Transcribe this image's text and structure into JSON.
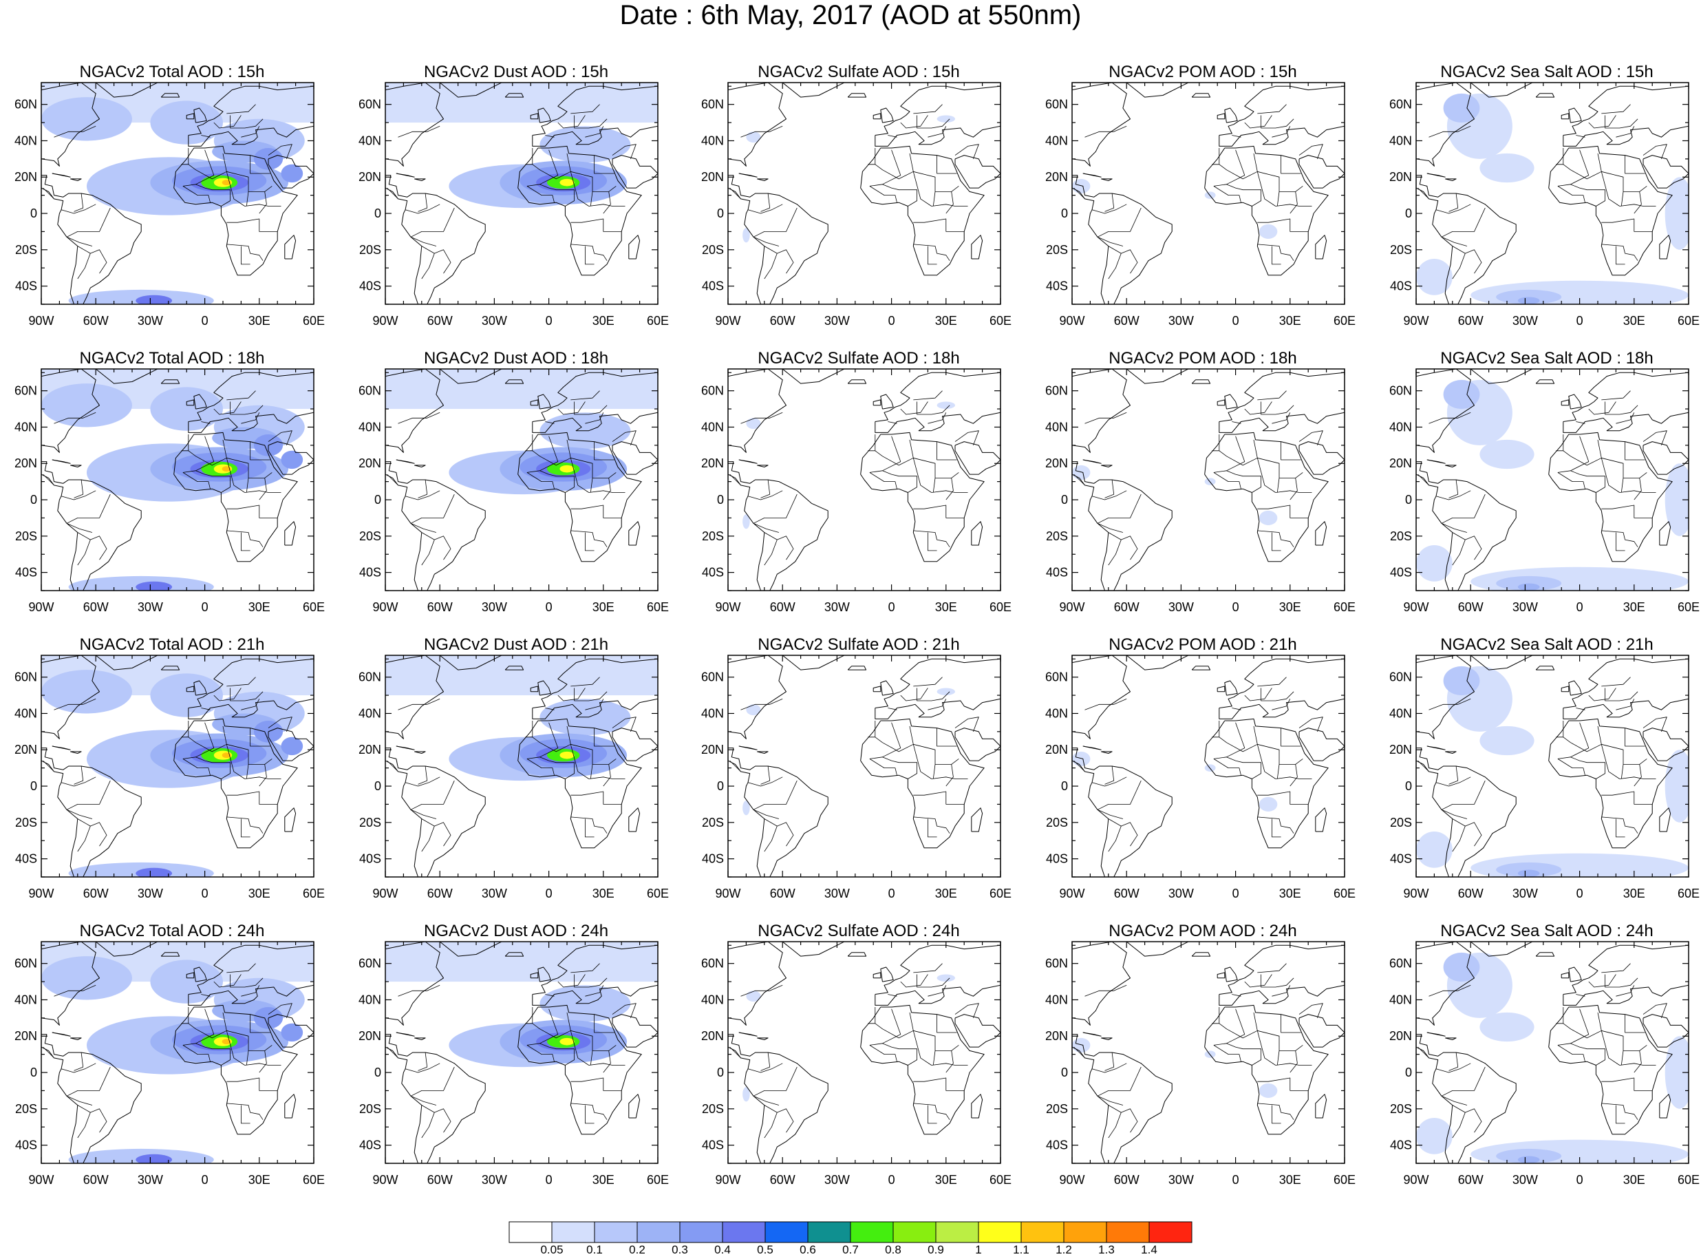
{
  "title": "Date : 6th May, 2017 (AOD at 550nm)",
  "map": {
    "lon_ticks": [
      "90W",
      "60W",
      "30W",
      "0",
      "30E",
      "60E"
    ],
    "lat_ticks": [
      "60N",
      "40N",
      "20N",
      "0",
      "20S",
      "40S"
    ]
  },
  "panels": [
    {
      "title": "NGACv2 Total AOD : 15h",
      "species": "total"
    },
    {
      "title": "NGACv2 Dust AOD : 15h",
      "species": "dust"
    },
    {
      "title": "NGACv2 Sulfate AOD : 15h",
      "species": "sulfate"
    },
    {
      "title": "NGACv2 POM AOD : 15h",
      "species": "pom"
    },
    {
      "title": "NGACv2 Sea Salt AOD : 15h",
      "species": "seasalt"
    },
    {
      "title": "NGACv2 Total AOD : 18h",
      "species": "total"
    },
    {
      "title": "NGACv2 Dust AOD : 18h",
      "species": "dust"
    },
    {
      "title": "NGACv2 Sulfate AOD : 18h",
      "species": "sulfate"
    },
    {
      "title": "NGACv2 POM AOD : 18h",
      "species": "pom"
    },
    {
      "title": "NGACv2 Sea Salt AOD : 18h",
      "species": "seasalt"
    },
    {
      "title": "NGACv2 Total AOD : 21h",
      "species": "total"
    },
    {
      "title": "NGACv2 Dust AOD : 21h",
      "species": "dust"
    },
    {
      "title": "NGACv2 Sulfate AOD : 21h",
      "species": "sulfate"
    },
    {
      "title": "NGACv2 POM AOD : 21h",
      "species": "pom"
    },
    {
      "title": "NGACv2 Sea Salt AOD : 21h",
      "species": "seasalt"
    },
    {
      "title": "NGACv2 Total AOD : 24h",
      "species": "total"
    },
    {
      "title": "NGACv2 Dust AOD : 24h",
      "species": "dust"
    },
    {
      "title": "NGACv2 Sulfate AOD : 24h",
      "species": "sulfate"
    },
    {
      "title": "NGACv2 POM AOD : 24h",
      "species": "pom"
    },
    {
      "title": "NGACv2 Sea Salt  AOD : 24h",
      "species": "seasalt"
    }
  ],
  "colorbar": {
    "labels": [
      "0.05",
      "0.1",
      "0.2",
      "0.3",
      "0.4",
      "0.5",
      "0.6",
      "0.7",
      "0.8",
      "0.9",
      "1",
      "1.1",
      "1.2",
      "1.3",
      "1.4"
    ],
    "colors": [
      "#ffffff",
      "#d4dffc",
      "#b7c8fa",
      "#9db3f6",
      "#849bf3",
      "#6b77ef",
      "#1467f4",
      "#0f9090",
      "#44ee0f",
      "#88ee10",
      "#bbee44",
      "#ffff1a",
      "#ffc20f",
      "#ffa20b",
      "#ff7a08",
      "#ff2510"
    ]
  }
}
